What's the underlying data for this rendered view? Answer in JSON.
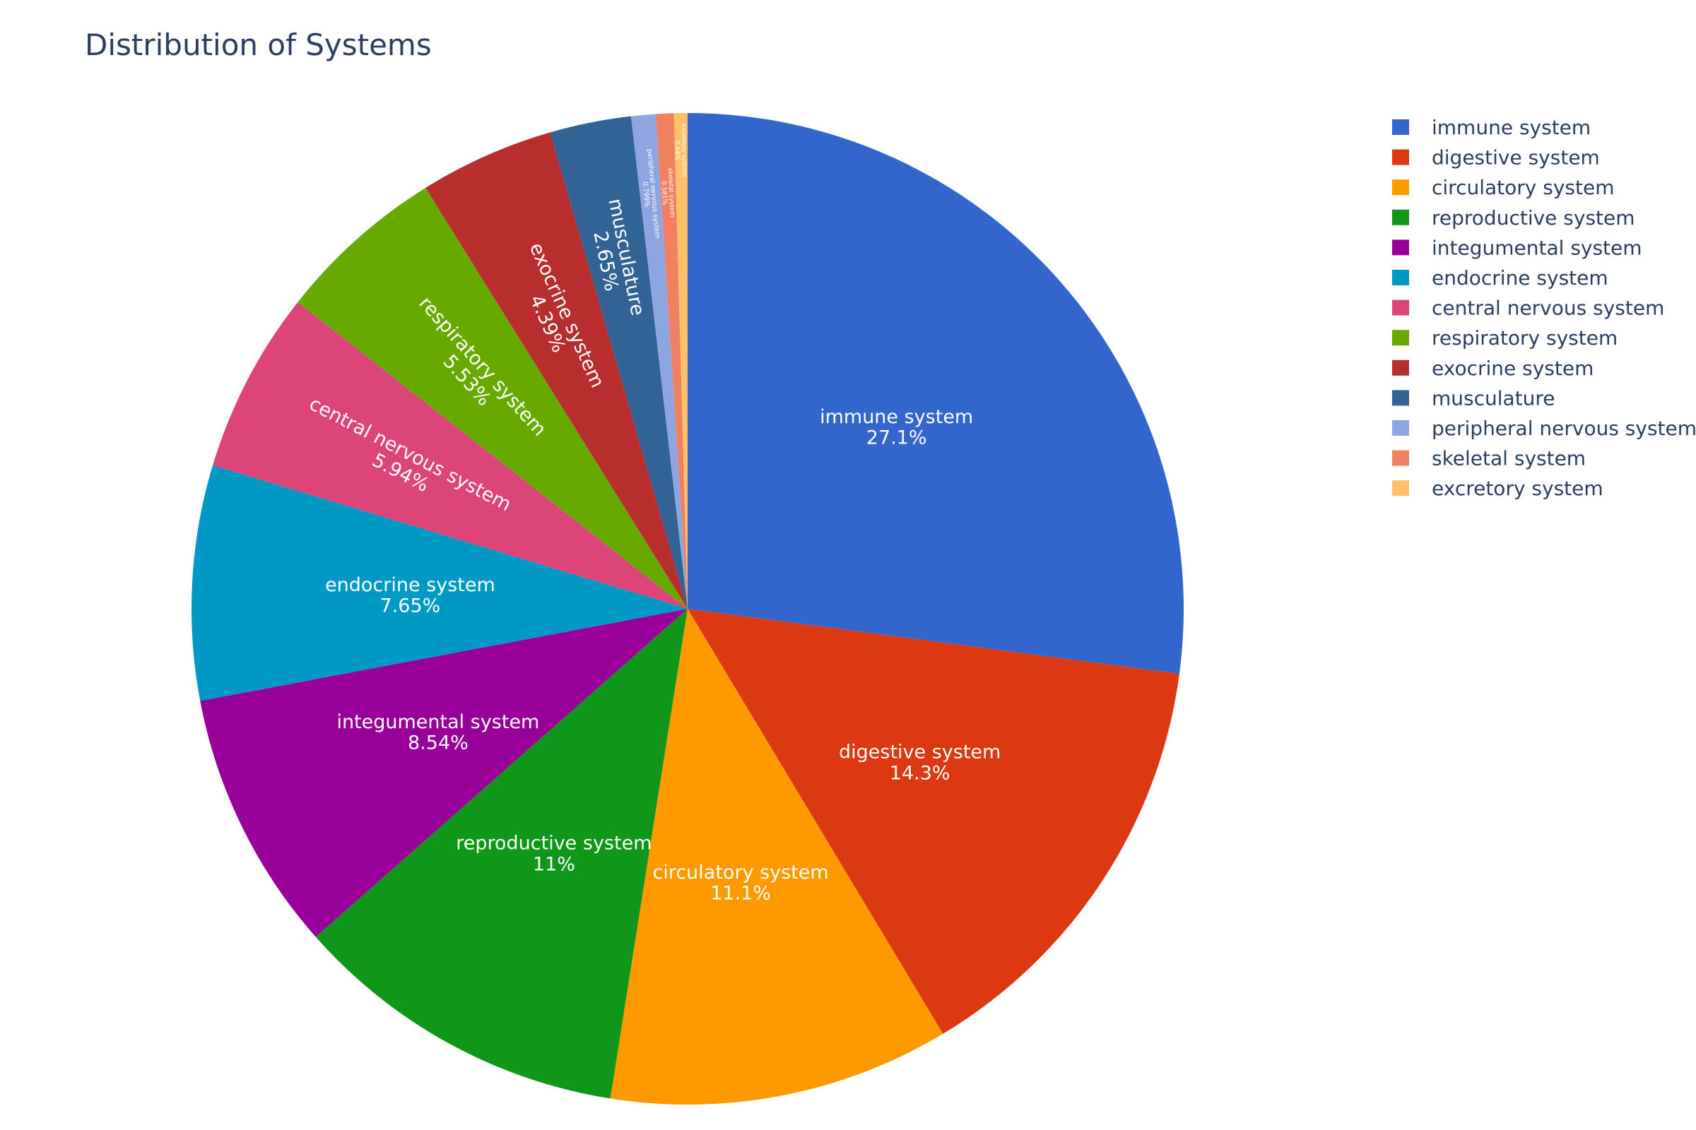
{
  "chart_data": {
    "type": "pie",
    "title": "Distribution of Systems",
    "unit": "%",
    "sort_order": "clockwise",
    "start_angle_deg": 90,
    "legend_position": "right",
    "labels": [
      "immune system",
      "digestive system",
      "circulatory system",
      "reproductive system",
      "integumental system",
      "endocrine system",
      "central nervous system",
      "respiratory system",
      "exocrine system",
      "musculature",
      "peripheral nervous system",
      "skeletal system",
      "excretory system"
    ],
    "values": [
      27.1,
      14.3,
      11.1,
      11.0,
      8.54,
      7.65,
      5.94,
      5.53,
      4.39,
      2.65,
      0.799,
      0.581,
      0.44
    ],
    "value_labels": [
      "27.1%",
      "14.3%",
      "11.1%",
      "11%",
      "8.54%",
      "7.65%",
      "5.94%",
      "5.53%",
      "4.39%",
      "2.65%",
      "0.799%",
      "0.581%",
      "0.44%"
    ],
    "colors": [
      "#3366cc",
      "#dc3912",
      "#ff9900",
      "#109618",
      "#990099",
      "#0099c6",
      "#dd4477",
      "#66aa00",
      "#b82e2e",
      "#316395",
      "#8ea6e0",
      "#f08060",
      "#ffc06a"
    ]
  }
}
